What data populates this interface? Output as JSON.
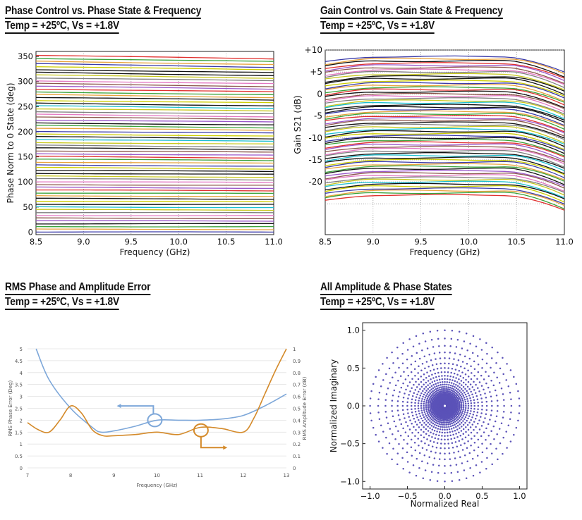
{
  "titles": {
    "phase": {
      "line1": "Phase Control vs. Phase State & Frequency",
      "line2": "Temp = +25ºC, Vs = +1.8V"
    },
    "gain": {
      "line1": "Gain Control vs. Gain State & Frequency",
      "line2": "Temp = +25ºC, Vs = +1.8V"
    },
    "rms": {
      "line1": "RMS Phase and Amplitude Error",
      "line2": "Temp = +25ºC, Vs = +1.8V"
    },
    "states": {
      "line1": "All Amplitude & Phase States",
      "line2": "Temp = +25ºC, Vs = +1.8V"
    }
  },
  "colors": {
    "palette": [
      "#3a3aa8",
      "#e8a23c",
      "#3aa33a",
      "#e0302e",
      "#9a56c9",
      "#8c564b",
      "#e377c2",
      "#7f7f7f",
      "#c8c81e",
      "#1bbecf",
      "#111111",
      "#cccc00"
    ],
    "rms_phase": "#7da7d9",
    "rms_amp": "#d48a2a",
    "scatter": "#5b52b8"
  },
  "chart_data": [
    {
      "type": "line",
      "name": "phase",
      "xlabel": "Frequency (GHz)",
      "ylabel": "Phase Norm to 0 State (deg)",
      "xlim": [
        8.5,
        11.0
      ],
      "ylim": [
        -5,
        360
      ],
      "xticks": [
        "8.5",
        "9.0",
        "9.5",
        "10.0",
        "10.5",
        "11.0"
      ],
      "yticks": [
        "0",
        "50",
        "100",
        "150",
        "200",
        "250",
        "300",
        "350"
      ],
      "grid": true,
      "state_count": 64,
      "state_start": 0,
      "state_end": 352,
      "drift_at_top": -7
    },
    {
      "type": "line",
      "name": "gain",
      "xlabel": "Frequency (GHz)",
      "ylabel": "Gain S21 (dB)",
      "xlim": [
        8.5,
        11.0
      ],
      "ylim": [
        -32,
        10
      ],
      "xticks": [
        "8.5",
        "9.0",
        "9.5",
        "10.0",
        "10.5",
        "11.0"
      ],
      "yticks": [
        "+10",
        "+5",
        "0",
        "-5",
        "-10",
        "-15",
        "-20"
      ],
      "ytick_values": [
        10,
        5,
        0,
        -5,
        -10,
        -15,
        -20
      ],
      "grid": true,
      "state_count": 64,
      "top_gain": 8.5,
      "bottom_gain": -23,
      "rolloff_at_11": -3.5
    },
    {
      "type": "line",
      "name": "rms_error",
      "xlabel": "Frequency (GHz)",
      "ylabel": "RMS Phase Error (Deg)",
      "y2label": "RMS Amplitude Error (dB)",
      "xlim": [
        7,
        13
      ],
      "ylim": [
        0,
        5
      ],
      "y2lim": [
        0,
        1
      ],
      "xticks": [
        "7",
        "8",
        "9",
        "10",
        "11",
        "12",
        "13"
      ],
      "yticks": [
        "0",
        "0.5",
        "1",
        "1.5",
        "2",
        "2.5",
        "3",
        "3.5",
        "4",
        "4.5",
        "5"
      ],
      "y2ticks": [
        "0",
        "0.1",
        "0.2",
        "0.3",
        "0.4",
        "0.5",
        "0.6",
        "0.7",
        "0.8",
        "0.9",
        "1"
      ],
      "series": [
        {
          "axis": "left",
          "x": [
            7.2,
            7.5,
            8.0,
            8.5,
            8.7,
            9.0,
            9.5,
            10.0,
            10.5,
            11.0,
            11.5,
            12.0,
            12.5,
            13.0
          ],
          "values": [
            5.0,
            3.7,
            2.5,
            1.7,
            1.5,
            1.55,
            1.75,
            2.0,
            2.0,
            2.0,
            2.05,
            2.2,
            2.6,
            3.1
          ]
        },
        {
          "axis": "right",
          "x": [
            7.0,
            7.25,
            7.5,
            7.75,
            8.0,
            8.25,
            8.5,
            8.75,
            9.0,
            9.5,
            10.0,
            10.5,
            11.0,
            11.5,
            12.0,
            12.25,
            12.5,
            12.75,
            13.0
          ],
          "values": [
            0.38,
            0.32,
            0.3,
            0.4,
            0.52,
            0.46,
            0.32,
            0.27,
            0.27,
            0.28,
            0.3,
            0.28,
            0.34,
            0.33,
            0.3,
            0.42,
            0.62,
            0.82,
            1.0
          ]
        }
      ]
    },
    {
      "type": "scatter",
      "name": "states",
      "xlabel": "Normalized Real",
      "ylabel": "Normalized Imaginary",
      "xlim": [
        -1.1,
        1.1
      ],
      "ylim": [
        -1.1,
        1.1
      ],
      "xticks": [
        "−1.0",
        "−0.5",
        "0.0",
        "0.5",
        "1.0"
      ],
      "yticks": [
        "−1.0",
        "−0.5",
        "0.0",
        "0.5",
        "1.0"
      ],
      "xtick_values": [
        -1,
        -0.5,
        0,
        0.5,
        1
      ],
      "ytick_values": [
        -1,
        -0.5,
        0,
        0.5,
        1
      ],
      "phase_states": 64,
      "amplitude_states": 64,
      "amplitude_step_db": 0.5
    }
  ]
}
